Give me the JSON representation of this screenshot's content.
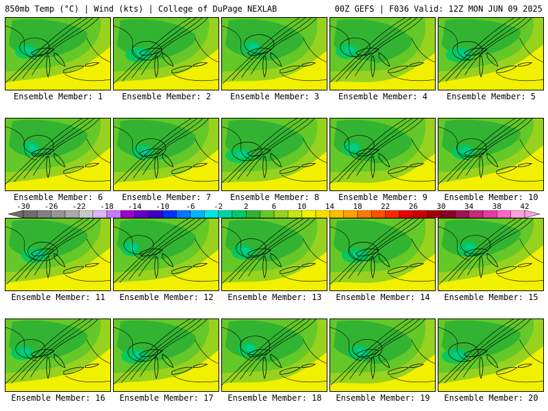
{
  "header": {
    "left": "850mb Temp (°C) | Wind (kts) | College of DuPage NEXLAB",
    "right": "00Z GEFS | F036 Valid: 12Z MON JUN 09 2025"
  },
  "panels": [
    {
      "label": "Ensemble Member: 1",
      "member": 1
    },
    {
      "label": "Ensemble Member: 2",
      "member": 2
    },
    {
      "label": "Ensemble Member: 3",
      "member": 3
    },
    {
      "label": "Ensemble Member: 4",
      "member": 4
    },
    {
      "label": "Ensemble Member: 5",
      "member": 5
    },
    {
      "label": "Ensemble Member: 6",
      "member": 6
    },
    {
      "label": "Ensemble Member: 7",
      "member": 7
    },
    {
      "label": "Ensemble Member: 8",
      "member": 8
    },
    {
      "label": "Ensemble Member: 9",
      "member": 9
    },
    {
      "label": "Ensemble Member: 10",
      "member": 10
    },
    {
      "label": "Ensemble Member: 11",
      "member": 11
    },
    {
      "label": "Ensemble Member: 12",
      "member": 12
    },
    {
      "label": "Ensemble Member: 13",
      "member": 13
    },
    {
      "label": "Ensemble Member: 14",
      "member": 14
    },
    {
      "label": "Ensemble Member: 15",
      "member": 15
    },
    {
      "label": "Ensemble Member: 16",
      "member": 16
    },
    {
      "label": "Ensemble Member: 17",
      "member": 17
    },
    {
      "label": "Ensemble Member: 18",
      "member": 18
    },
    {
      "label": "Ensemble Member: 19",
      "member": 19
    },
    {
      "label": "Ensemble Member: 20",
      "member": 20
    }
  ],
  "colorbar": {
    "ticks": [
      "-30",
      "-26",
      "-22",
      "-18",
      "-14",
      "-10",
      "-6",
      "-2",
      "2",
      "6",
      "10",
      "14",
      "18",
      "22",
      "26",
      "30",
      "34",
      "38",
      "42"
    ],
    "colors": [
      "#6e6e6e",
      "#828282",
      "#969696",
      "#aaaaaa",
      "#c8c8c8",
      "#dcb4ff",
      "#c878ff",
      "#a000c8",
      "#6400c8",
      "#3c00c8",
      "#0032ff",
      "#0078ff",
      "#00b4ff",
      "#00e6e6",
      "#00d2a0",
      "#00c864",
      "#32b432",
      "#64c828",
      "#96d21e",
      "#c8e614",
      "#f0f000",
      "#ffdc00",
      "#ffbe00",
      "#ffa000",
      "#ff7800",
      "#ff5000",
      "#ff2800",
      "#e60000",
      "#c80000",
      "#a00000",
      "#8c0028",
      "#a01450",
      "#c8287a",
      "#e63ca0",
      "#ff64c8",
      "#ffa0dc"
    ]
  },
  "colors": {
    "warm_yellow": "#f0f000",
    "light_green": "#96d21e",
    "mid_green": "#64c828",
    "green": "#32b432",
    "teal": "#00c864",
    "cyan_green": "#00d2a0"
  }
}
